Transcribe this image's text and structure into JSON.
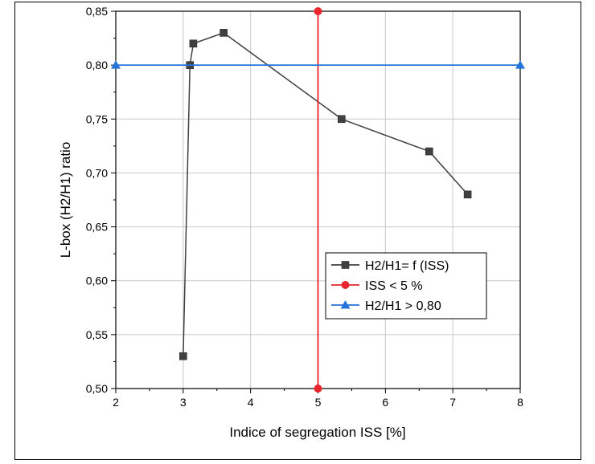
{
  "chart_data": {
    "type": "line",
    "xlabel": "Indice of segregation ISS [%]",
    "ylabel": "L-box (H2/H1) ratio",
    "xlim": [
      2,
      8
    ],
    "ylim": [
      0.5,
      0.85
    ],
    "x_ticks": [
      "2",
      "3",
      "4",
      "5",
      "6",
      "7",
      "8"
    ],
    "y_ticks": [
      "0,50",
      "0,55",
      "0,60",
      "0,65",
      "0,70",
      "0,75",
      "0,80",
      "0,85"
    ],
    "grid": true,
    "legend_position": "bottom-right",
    "series": [
      {
        "name": "H2/H1= f (ISS)",
        "marker": "square",
        "color": "#404040",
        "x": [
          3.0,
          3.1,
          3.15,
          3.6,
          5.35,
          6.65,
          7.22
        ],
        "y": [
          0.53,
          0.8,
          0.82,
          0.83,
          0.75,
          0.72,
          0.68
        ]
      },
      {
        "name": "ISS < 5 %",
        "marker": "circle",
        "color": "#e8262b",
        "x": [
          5,
          5
        ],
        "y": [
          0.5,
          0.85
        ]
      },
      {
        "name": "H2/H1 > 0,80",
        "marker": "triangle",
        "color": "#2474d9",
        "x": [
          2,
          8
        ],
        "y": [
          0.8,
          0.8
        ]
      }
    ]
  }
}
